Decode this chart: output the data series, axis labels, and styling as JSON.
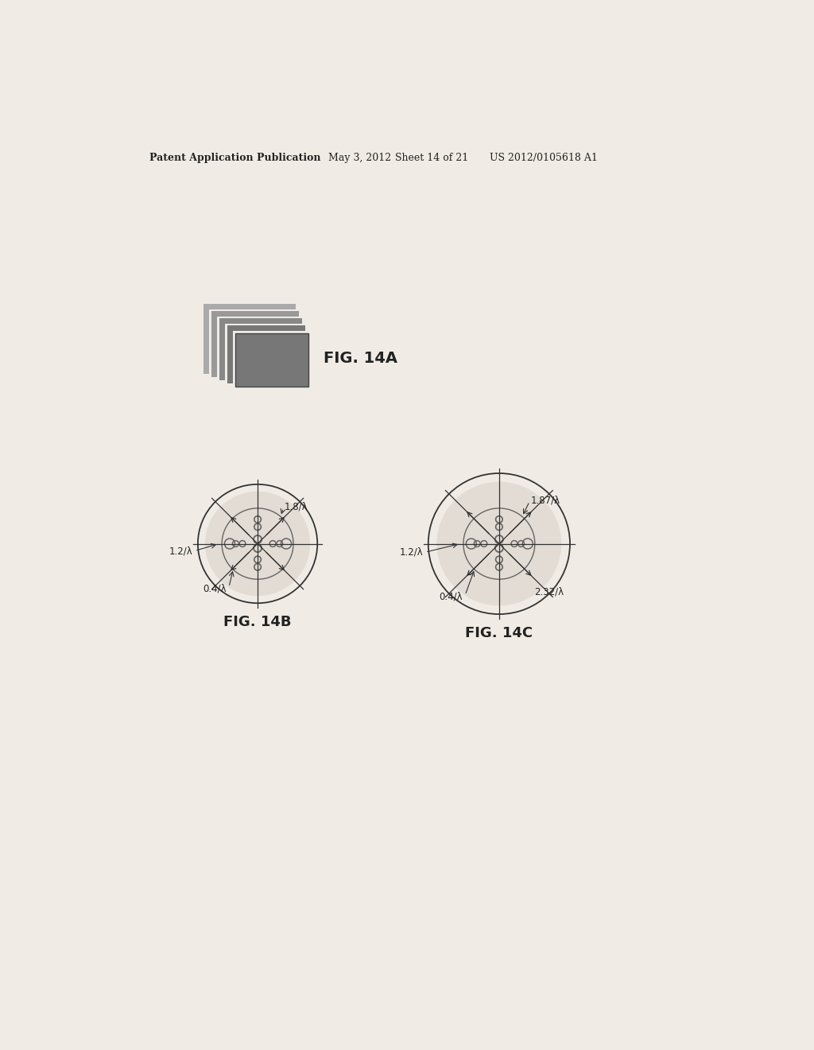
{
  "bg_color": "#f0ece5",
  "header_text": "Patent Application Publication",
  "header_date": "May 3, 2012",
  "header_sheet": "Sheet 14 of 21",
  "header_patent": "US 2012/0105618 A1",
  "fig14a_label": "FIG. 14A",
  "fig14b_label": "FIG. 14B",
  "fig14c_label": "FIG. 14C",
  "fig14b_labels": {
    "top_right": "1.8/λ",
    "left": "1.2/λ",
    "bottom_left": "0.4/λ"
  },
  "fig14c_labels": {
    "top_right": "1.87/λ",
    "left": "1.2/λ",
    "bottom_left": "0.4/λ",
    "bottom_right": "2.32/λ"
  },
  "icon_colors": [
    "#888888",
    "#888888",
    "#888888",
    "#888888",
    "#666666"
  ],
  "icon_sq_color": "#777777",
  "line_color": "#333333",
  "text_color": "#222222",
  "header_line_color": "#666666"
}
